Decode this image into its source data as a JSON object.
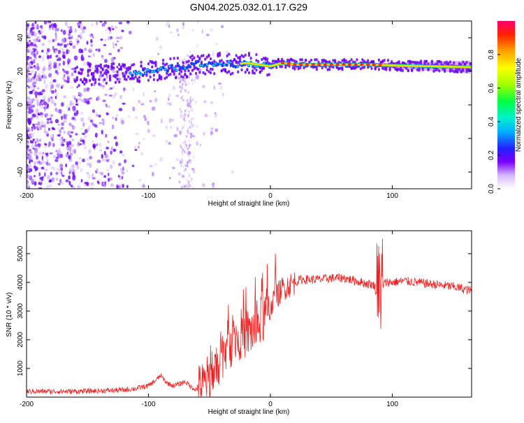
{
  "title": "GN04.2025.032.01.17.G29",
  "chart_data": [
    {
      "type": "heatmap",
      "xlabel": "Height of straight line (km)",
      "ylabel": "Frequency (Hz)",
      "xlim": [
        -200,
        165
      ],
      "ylim": [
        -50,
        50
      ],
      "xticks": [
        -200,
        -100,
        0,
        100
      ],
      "yticks": [
        -40,
        -20,
        0,
        20,
        40
      ],
      "colorbar": {
        "label": "Normalized spectral amplitude",
        "range": [
          0,
          1
        ],
        "ticks": [
          0.0,
          0.2,
          0.4,
          0.6,
          0.8
        ]
      },
      "trace_points": [
        {
          "x": -200,
          "y": 20
        },
        {
          "x": -175,
          "y": 18
        },
        {
          "x": -150,
          "y": 17
        },
        {
          "x": -125,
          "y": 19
        },
        {
          "x": -110,
          "y": 19
        },
        {
          "x": -100,
          "y": 20
        },
        {
          "x": -90,
          "y": 21
        },
        {
          "x": -80,
          "y": 22
        },
        {
          "x": -70,
          "y": 22
        },
        {
          "x": -60,
          "y": 25
        },
        {
          "x": -50,
          "y": 24
        },
        {
          "x": -40,
          "y": 25
        },
        {
          "x": -30,
          "y": 24
        },
        {
          "x": -20,
          "y": 25
        },
        {
          "x": -10,
          "y": 24
        },
        {
          "x": 0,
          "y": 23
        },
        {
          "x": 10,
          "y": 25
        },
        {
          "x": 20,
          "y": 24
        },
        {
          "x": 40,
          "y": 24
        },
        {
          "x": 60,
          "y": 24
        },
        {
          "x": 80,
          "y": 24
        },
        {
          "x": 100,
          "y": 23.5
        },
        {
          "x": 130,
          "y": 23
        },
        {
          "x": 165,
          "y": 22.5
        }
      ]
    },
    {
      "type": "line",
      "xlabel": "Height of straight line (km)",
      "ylabel": "SNR (10 * v/v)",
      "xlim": [
        -200,
        165
      ],
      "ylim": [
        0,
        5800
      ],
      "xticks": [
        -200,
        -100,
        0,
        100
      ],
      "yticks": [
        1000,
        2000,
        3000,
        4000,
        5000
      ],
      "series": [
        {
          "color": "#ee2222",
          "x": [
            -200,
            -180,
            -160,
            -140,
            -120,
            -110,
            -100,
            -95,
            -90,
            -85,
            -80,
            -75,
            -70,
            -65,
            -60,
            -55,
            -50,
            -45,
            -40,
            -35,
            -30,
            -25,
            -20,
            -15,
            -10,
            -5,
            0,
            5,
            10,
            15,
            20,
            25,
            30,
            40,
            50,
            60,
            70,
            80,
            85,
            88,
            90,
            92,
            95,
            100,
            110,
            120,
            130,
            140,
            150,
            160,
            165
          ],
          "y": [
            200,
            200,
            200,
            220,
            250,
            300,
            400,
            550,
            750,
            500,
            400,
            450,
            550,
            350,
            250,
            400,
            650,
            1000,
            1500,
            1800,
            2000,
            2200,
            2200,
            2300,
            2500,
            2800,
            3200,
            3500,
            3800,
            3900,
            4000,
            4100,
            4100,
            4100,
            4150,
            4150,
            4050,
            3950,
            3900,
            3500,
            2800,
            3900,
            4000,
            4000,
            4050,
            4000,
            3950,
            3900,
            3850,
            3750,
            3700
          ]
        }
      ]
    }
  ]
}
